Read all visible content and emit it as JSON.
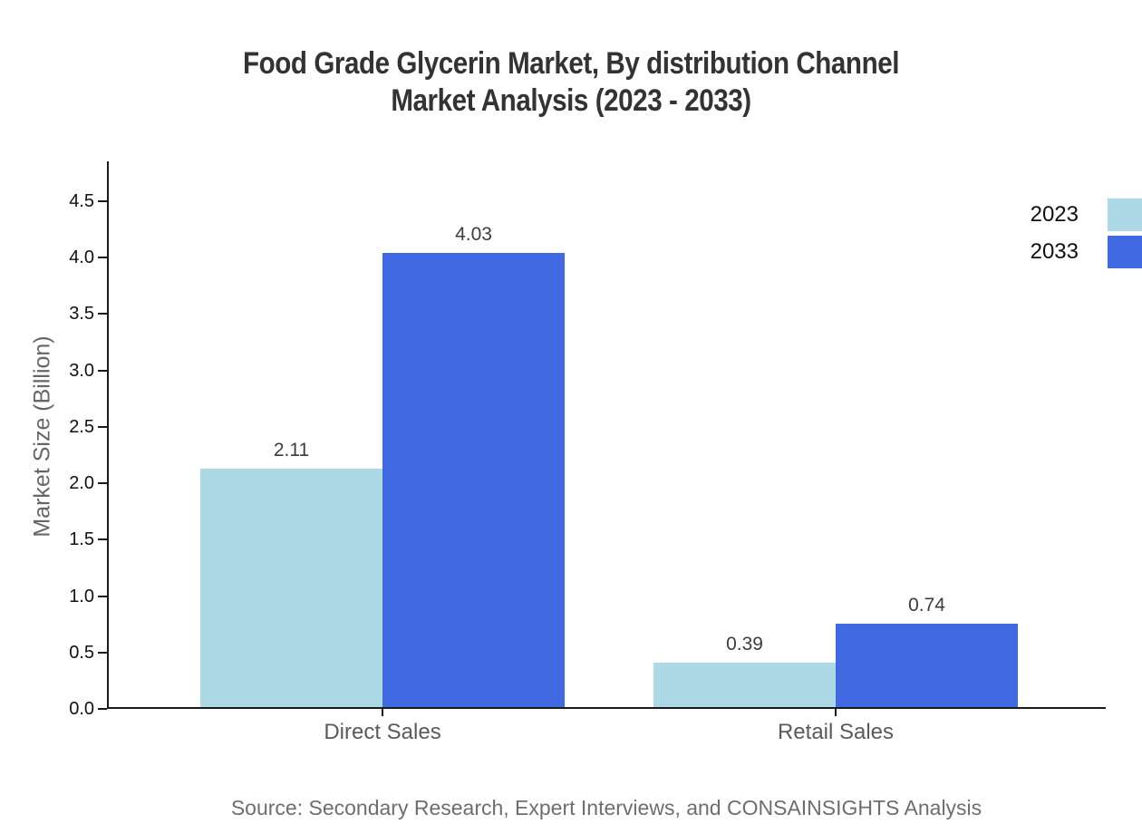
{
  "title": {
    "line1": "Food Grade Glycerin Market, By distribution Channel",
    "line2": "Market Analysis (2023 - 2033)"
  },
  "source": "Source: Secondary Research, Expert Interviews, and CONSAINSIGHTS Analysis",
  "chart_data": {
    "type": "bar",
    "title": "Food Grade Glycerin Market, By distribution Channel Market Analysis (2023 - 2033)",
    "categories": [
      "Direct Sales",
      "Retail Sales"
    ],
    "series": [
      {
        "name": "2023",
        "color": "#ADD8E6",
        "values": [
          2.11,
          0.39
        ]
      },
      {
        "name": "2033",
        "color": "#4169E1",
        "values": [
          4.03,
          0.74
        ]
      }
    ],
    "xlabel": "",
    "ylabel": "Market Size (Billion)",
    "ylim": [
      0,
      4.85
    ],
    "yticks": [
      "0.0",
      "0.5",
      "1.0",
      "1.5",
      "2.0",
      "2.5",
      "3.0",
      "3.5",
      "4.0",
      "4.5"
    ],
    "grid": false,
    "bar_value_labels": true,
    "value_label_decimals": 2,
    "legend_position": "top-right",
    "colors": {
      "axis": "#1a1a1a",
      "title_text": "#333333",
      "muted_text": "#6e6e6e"
    }
  }
}
